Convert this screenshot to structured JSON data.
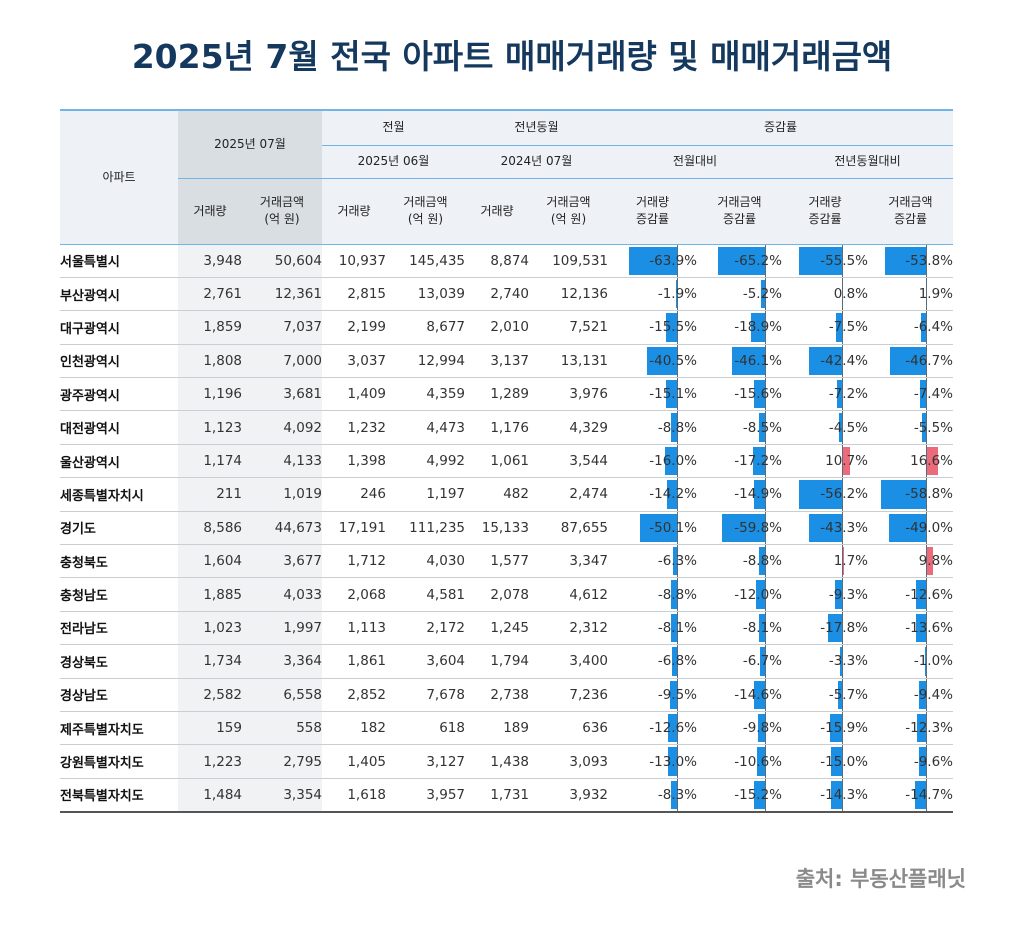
{
  "title": "2025년 7월 전국 아파트 매매거래량 및 매매거래금액",
  "source": "출처: 부동산플래닛",
  "colors": {
    "title": "#14385e",
    "negative_bar": "#1a8fe3",
    "positive_bar": "#ec6b7a",
    "header_rule": "#6fb6e6"
  },
  "header": {
    "region": "아파트",
    "current": "2025년 07월",
    "prev_month": "전월",
    "prev_year": "전년동월",
    "change": "증감률",
    "prev_month_date": "2025년 06월",
    "prev_year_date": "2024년 07월",
    "vs_month": "전월대비",
    "vs_year": "전년동월대비",
    "volume": "거래량",
    "amount_l1": "거래금액",
    "amount_l2": "(억 원)",
    "rate_vol_l1": "거래량",
    "rate_vol_l2": "증감률",
    "rate_amt_l1": "거래금액",
    "rate_amt_l2": "증감률"
  },
  "rows": [
    {
      "region": "서울특별시",
      "v0": "3,948",
      "a0": "50,604",
      "v1": "10,937",
      "a1": "145,435",
      "v2": "8,874",
      "a2": "109,531",
      "r1": "-63.9%",
      "r2": "-65.2%",
      "r3": "-55.5%",
      "r4": "-53.8%"
    },
    {
      "region": "부산광역시",
      "v0": "2,761",
      "a0": "12,361",
      "v1": "2,815",
      "a1": "13,039",
      "v2": "2,740",
      "a2": "12,136",
      "r1": "-1.9%",
      "r2": "-5.2%",
      "r3": "0.8%",
      "r4": "1.9%"
    },
    {
      "region": "대구광역시",
      "v0": "1,859",
      "a0": "7,037",
      "v1": "2,199",
      "a1": "8,677",
      "v2": "2,010",
      "a2": "7,521",
      "r1": "-15.5%",
      "r2": "-18.9%",
      "r3": "-7.5%",
      "r4": "-6.4%"
    },
    {
      "region": "인천광역시",
      "v0": "1,808",
      "a0": "7,000",
      "v1": "3,037",
      "a1": "12,994",
      "v2": "3,137",
      "a2": "13,131",
      "r1": "-40.5%",
      "r2": "-46.1%",
      "r3": "-42.4%",
      "r4": "-46.7%"
    },
    {
      "region": "광주광역시",
      "v0": "1,196",
      "a0": "3,681",
      "v1": "1,409",
      "a1": "4,359",
      "v2": "1,289",
      "a2": "3,976",
      "r1": "-15.1%",
      "r2": "-15.6%",
      "r3": "-7.2%",
      "r4": "-7.4%"
    },
    {
      "region": "대전광역시",
      "v0": "1,123",
      "a0": "4,092",
      "v1": "1,232",
      "a1": "4,473",
      "v2": "1,176",
      "a2": "4,329",
      "r1": "-8.8%",
      "r2": "-8.5%",
      "r3": "-4.5%",
      "r4": "-5.5%"
    },
    {
      "region": "울산광역시",
      "v0": "1,174",
      "a0": "4,133",
      "v1": "1,398",
      "a1": "4,992",
      "v2": "1,061",
      "a2": "3,544",
      "r1": "-16.0%",
      "r2": "-17.2%",
      "r3": "10.7%",
      "r4": "16.6%"
    },
    {
      "region": "세종특별자치시",
      "v0": "211",
      "a0": "1,019",
      "v1": "246",
      "a1": "1,197",
      "v2": "482",
      "a2": "2,474",
      "r1": "-14.2%",
      "r2": "-14.9%",
      "r3": "-56.2%",
      "r4": "-58.8%"
    },
    {
      "region": "경기도",
      "v0": "8,586",
      "a0": "44,673",
      "v1": "17,191",
      "a1": "111,235",
      "v2": "15,133",
      "a2": "87,655",
      "r1": "-50.1%",
      "r2": "-59.8%",
      "r3": "-43.3%",
      "r4": "-49.0%"
    },
    {
      "region": "충청북도",
      "v0": "1,604",
      "a0": "3,677",
      "v1": "1,712",
      "a1": "4,030",
      "v2": "1,577",
      "a2": "3,347",
      "r1": "-6.3%",
      "r2": "-8.8%",
      "r3": "1.7%",
      "r4": "9.8%"
    },
    {
      "region": "충청남도",
      "v0": "1,885",
      "a0": "4,033",
      "v1": "2,068",
      "a1": "4,581",
      "v2": "2,078",
      "a2": "4,612",
      "r1": "-8.8%",
      "r2": "-12.0%",
      "r3": "-9.3%",
      "r4": "-12.6%"
    },
    {
      "region": "전라남도",
      "v0": "1,023",
      "a0": "1,997",
      "v1": "1,113",
      "a1": "2,172",
      "v2": "1,245",
      "a2": "2,312",
      "r1": "-8.1%",
      "r2": "-8.1%",
      "r3": "-17.8%",
      "r4": "-13.6%"
    },
    {
      "region": "경상북도",
      "v0": "1,734",
      "a0": "3,364",
      "v1": "1,861",
      "a1": "3,604",
      "v2": "1,794",
      "a2": "3,400",
      "r1": "-6.8%",
      "r2": "-6.7%",
      "r3": "-3.3%",
      "r4": "-1.0%"
    },
    {
      "region": "경상남도",
      "v0": "2,582",
      "a0": "6,558",
      "v1": "2,852",
      "a1": "7,678",
      "v2": "2,738",
      "a2": "7,236",
      "r1": "-9.5%",
      "r2": "-14.6%",
      "r3": "-5.7%",
      "r4": "-9.4%"
    },
    {
      "region": "제주특별자치도",
      "v0": "159",
      "a0": "558",
      "v1": "182",
      "a1": "618",
      "v2": "189",
      "a2": "636",
      "r1": "-12.6%",
      "r2": "-9.8%",
      "r3": "-15.9%",
      "r4": "-12.3%"
    },
    {
      "region": "강원특별자치도",
      "v0": "1,223",
      "a0": "2,795",
      "v1": "1,405",
      "a1": "3,127",
      "v2": "1,438",
      "a2": "3,093",
      "r1": "-13.0%",
      "r2": "-10.6%",
      "r3": "-15.0%",
      "r4": "-9.6%"
    },
    {
      "region": "전북특별자치도",
      "v0": "1,484",
      "a0": "3,354",
      "v1": "1,618",
      "a1": "3,957",
      "v2": "1,731",
      "a2": "3,932",
      "r1": "-8.3%",
      "r2": "-15.2%",
      "r3": "-14.3%",
      "r4": "-14.7%"
    }
  ]
}
